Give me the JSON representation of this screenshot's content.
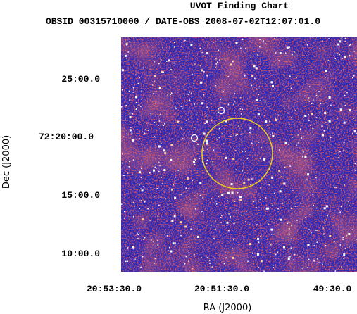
{
  "header": {
    "title": "UVOT Finding Chart",
    "subtitle": "OBSID 00315710000 / DATE-OBS 2008-07-02T12:07:01.0"
  },
  "axes": {
    "x_label": "RA (J2000)",
    "y_label": "Dec (J2000)",
    "x_ticks": [
      "20:53:30.0",
      "20:51:30.0",
      "49:30.0"
    ],
    "y_ticks": [
      "25:00.0",
      "72:20:00.0",
      "15:00.0",
      "10:00.0"
    ]
  }
}
